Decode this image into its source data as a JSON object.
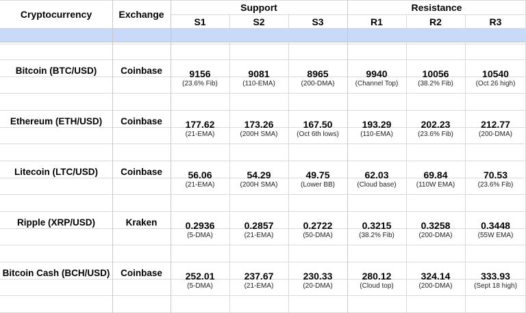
{
  "headers": {
    "crypto": "Cryptocurrency",
    "exchange": "Exchange",
    "support": "Support",
    "resistance": "Resistance",
    "s1": "S1",
    "s2": "S2",
    "s3": "S3",
    "r1": "R1",
    "r2": "R2",
    "r3": "R3"
  },
  "rows": [
    {
      "name": "Bitcoin (BTC/USD)",
      "exchange": "Coinbase",
      "levels": [
        {
          "value": "9156",
          "note": "(23.6% Fib)"
        },
        {
          "value": "9081",
          "note": "(110-EMA)"
        },
        {
          "value": "8965",
          "note": "(200-DMA)"
        },
        {
          "value": "9940",
          "note": "(Channel Top)"
        },
        {
          "value": "10056",
          "note": "(38.2% Fib)"
        },
        {
          "value": "10540",
          "note": "(Oct 26 high)"
        }
      ]
    },
    {
      "name": "Ethereum (ETH/USD)",
      "exchange": "Coinbase",
      "levels": [
        {
          "value": "177.62",
          "note": "(21-EMA)"
        },
        {
          "value": "173.26",
          "note": "(200H SMA)"
        },
        {
          "value": "167.50",
          "note": "(Oct 6th lows)"
        },
        {
          "value": "193.29",
          "note": "(110-EMA)"
        },
        {
          "value": "202.23",
          "note": "(23.6% Fib)"
        },
        {
          "value": "212.77",
          "note": "(200-DMA)"
        }
      ]
    },
    {
      "name": "Litecoin (LTC/USD)",
      "exchange": "Coinbase",
      "levels": [
        {
          "value": "56.06",
          "note": "(21-EMA)"
        },
        {
          "value": "54.29",
          "note": "(200H SMA)"
        },
        {
          "value": "49.75",
          "note": "(Lower BB)"
        },
        {
          "value": "62.03",
          "note": "(Cloud base)"
        },
        {
          "value": "69.84",
          "note": "(110W EMA)"
        },
        {
          "value": "70.53",
          "note": "(23.6% Fib)"
        }
      ]
    },
    {
      "name": "Ripple (XRP/USD)",
      "exchange": "Kraken",
      "levels": [
        {
          "value": "0.2936",
          "note": "(5-DMA)"
        },
        {
          "value": "0.2857",
          "note": "(21-EMA)"
        },
        {
          "value": "0.2722",
          "note": "(50-DMA)"
        },
        {
          "value": "0.3215",
          "note": "(38.2% Fib)"
        },
        {
          "value": "0.3258",
          "note": "(200-DMA)"
        },
        {
          "value": "0.3448",
          "note": "(55W EMA)"
        }
      ]
    },
    {
      "name": "Bitcoin Cash (BCH/USD)",
      "exchange": "Coinbase",
      "levels": [
        {
          "value": "252.01",
          "note": "(5-DMA)"
        },
        {
          "value": "237.67",
          "note": "(21-EMA)"
        },
        {
          "value": "230.33",
          "note": "(20-DMA)"
        },
        {
          "value": "280.12",
          "note": "(Cloud top)"
        },
        {
          "value": "324.14",
          "note": "(200-DMA)"
        },
        {
          "value": "333.93",
          "note": "(Sept 18 high)"
        }
      ]
    }
  ]
}
